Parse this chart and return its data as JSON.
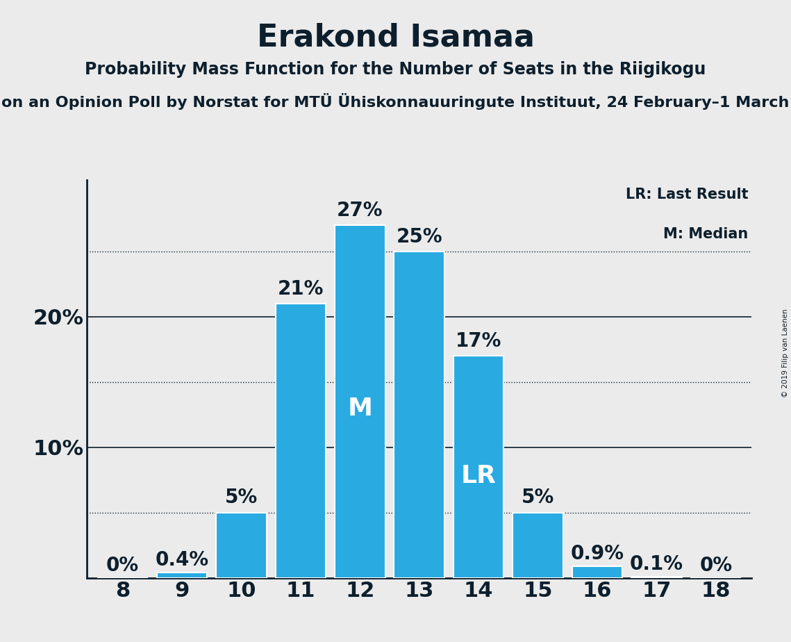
{
  "title": "Erakond Isamaa",
  "subtitle1": "Probability Mass Function for the Number of Seats in the Riigikogu",
  "subtitle2": "on an Opinion Poll by Norstat for MTÜ Ühiskonnauuringute Instituut, 24 February–1 March",
  "copyright": "© 2019 Filip van Laenen",
  "seats": [
    8,
    9,
    10,
    11,
    12,
    13,
    14,
    15,
    16,
    17,
    18
  ],
  "probabilities": [
    0.0,
    0.4,
    5.0,
    21.0,
    27.0,
    25.0,
    17.0,
    5.0,
    0.9,
    0.1,
    0.0
  ],
  "labels": [
    "0%",
    "0.4%",
    "5%",
    "21%",
    "27%",
    "25%",
    "17%",
    "5%",
    "0.9%",
    "0.1%",
    "0%"
  ],
  "bar_color": "#29abe2",
  "median_seat": 12,
  "lr_seat": 14,
  "yticks": [
    10,
    20
  ],
  "ytick_labels": [
    "10%",
    "20%"
  ],
  "solid_lines": [
    10,
    20
  ],
  "dotted_lines": [
    5,
    15,
    25
  ],
  "background_color": "#ebebeb",
  "bar_edge_color": "white",
  "axis_color": "#0d1f2d",
  "text_color": "#0d1f2d",
  "legend_lr": "LR: Last Result",
  "legend_m": "M: Median",
  "title_fontsize": 32,
  "subtitle1_fontsize": 17,
  "subtitle2_fontsize": 16,
  "label_fontsize": 17,
  "ytick_fontsize": 22,
  "xtick_fontsize": 22,
  "inner_label_color": "white",
  "outer_label_color": "#0d1f2d",
  "ylim_max": 30.5,
  "bar_width": 0.85
}
